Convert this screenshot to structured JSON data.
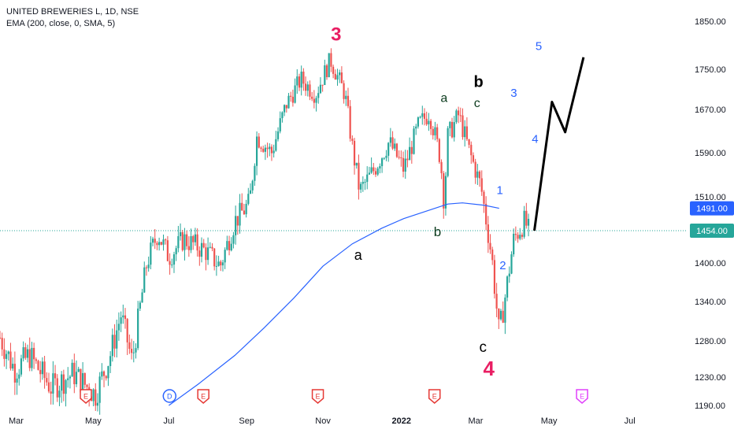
{
  "header": {
    "symbol": "UNITED BREWERIES L, 1D, NSE",
    "indicator": "EMA (200, close, 0, SMA, 5)"
  },
  "chart_data": {
    "type": "candlestick",
    "y_ticks": [
      1190,
      1230,
      1280,
      1340,
      1400,
      1454,
      1510,
      1590,
      1670,
      1750,
      1850
    ],
    "ylim": [
      1190,
      1850
    ],
    "x_labels": [
      "Mar",
      "May",
      "Jul",
      "Sep",
      "Nov",
      "2022",
      "Mar",
      "May",
      "Jul"
    ],
    "price_tags": [
      {
        "label": "1491.00",
        "value": 1491,
        "color": "#2962ff"
      },
      {
        "label": "1454.00",
        "value": 1454,
        "color": "#26a69a"
      }
    ],
    "ema_series": [
      {
        "t": 0.23,
        "v": 1190
      },
      {
        "t": 0.27,
        "v": 1220
      },
      {
        "t": 0.32,
        "v": 1260
      },
      {
        "t": 0.36,
        "v": 1300
      },
      {
        "t": 0.4,
        "v": 1345
      },
      {
        "t": 0.44,
        "v": 1395
      },
      {
        "t": 0.48,
        "v": 1432
      },
      {
        "t": 0.52,
        "v": 1458
      },
      {
        "t": 0.55,
        "v": 1474
      },
      {
        "t": 0.58,
        "v": 1486
      },
      {
        "t": 0.61,
        "v": 1498
      },
      {
        "t": 0.63,
        "v": 1500
      },
      {
        "t": 0.66,
        "v": 1496
      },
      {
        "t": 0.68,
        "v": 1491
      }
    ],
    "price_path": [
      {
        "t": 0.0,
        "v": 1285
      },
      {
        "t": 0.02,
        "v": 1240
      },
      {
        "t": 0.04,
        "v": 1260
      },
      {
        "t": 0.07,
        "v": 1215
      },
      {
        "t": 0.1,
        "v": 1235
      },
      {
        "t": 0.13,
        "v": 1205
      },
      {
        "t": 0.15,
        "v": 1260
      },
      {
        "t": 0.165,
        "v": 1320
      },
      {
        "t": 0.18,
        "v": 1250
      },
      {
        "t": 0.2,
        "v": 1400
      },
      {
        "t": 0.215,
        "v": 1450
      },
      {
        "t": 0.23,
        "v": 1410
      },
      {
        "t": 0.25,
        "v": 1440
      },
      {
        "t": 0.28,
        "v": 1420
      },
      {
        "t": 0.3,
        "v": 1395
      },
      {
        "t": 0.32,
        "v": 1470
      },
      {
        "t": 0.34,
        "v": 1500
      },
      {
        "t": 0.35,
        "v": 1620
      },
      {
        "t": 0.37,
        "v": 1590
      },
      {
        "t": 0.39,
        "v": 1680
      },
      {
        "t": 0.41,
        "v": 1730
      },
      {
        "t": 0.43,
        "v": 1700
      },
      {
        "t": 0.45,
        "v": 1770
      },
      {
        "t": 0.47,
        "v": 1700
      },
      {
        "t": 0.48,
        "v": 1600
      },
      {
        "t": 0.49,
        "v": 1520
      },
      {
        "t": 0.51,
        "v": 1560
      },
      {
        "t": 0.53,
        "v": 1610
      },
      {
        "t": 0.55,
        "v": 1560
      },
      {
        "t": 0.57,
        "v": 1640
      },
      {
        "t": 0.585,
        "v": 1665
      },
      {
        "t": 0.6,
        "v": 1580
      },
      {
        "t": 0.605,
        "v": 1500
      },
      {
        "t": 0.61,
        "v": 1620
      },
      {
        "t": 0.625,
        "v": 1660
      },
      {
        "t": 0.64,
        "v": 1590
      },
      {
        "t": 0.655,
        "v": 1530
      },
      {
        "t": 0.67,
        "v": 1410
      },
      {
        "t": 0.68,
        "v": 1290
      },
      {
        "t": 0.69,
        "v": 1360
      },
      {
        "t": 0.7,
        "v": 1440
      },
      {
        "t": 0.715,
        "v": 1470
      },
      {
        "t": 0.72,
        "v": 1454
      }
    ],
    "wave_line": [
      {
        "t": 0.728,
        "v": 1454
      },
      {
        "t": 0.752,
        "v": 1685
      },
      {
        "t": 0.77,
        "v": 1628
      },
      {
        "t": 0.795,
        "v": 1775
      }
    ],
    "annotations": [
      {
        "text": "3",
        "t": 0.458,
        "v": 1810,
        "color": "#e91e63",
        "size": 24
      },
      {
        "text": "a",
        "t": 0.605,
        "v": 1685,
        "color": "#0b3b1d",
        "size": 16
      },
      {
        "text": "b",
        "t": 0.652,
        "v": 1715,
        "color": "#000000",
        "size": 20
      },
      {
        "text": "c",
        "t": 0.65,
        "v": 1675,
        "color": "#0b3b1d",
        "size": 16
      },
      {
        "text": "a",
        "t": 0.488,
        "v": 1405,
        "color": "#000000",
        "size": 18
      },
      {
        "text": "b",
        "t": 0.596,
        "v": 1445,
        "color": "#0b3b1d",
        "size": 17
      },
      {
        "text": "1",
        "t": 0.681,
        "v": 1515,
        "color": "#2962ff",
        "size": 15
      },
      {
        "text": "2",
        "t": 0.685,
        "v": 1390,
        "color": "#2962ff",
        "size": 15
      },
      {
        "text": "c",
        "t": 0.658,
        "v": 1265,
        "color": "#000000",
        "size": 19
      },
      {
        "text": "4",
        "t": 0.666,
        "v": 1232,
        "color": "#e91e63",
        "size": 26
      },
      {
        "text": "3",
        "t": 0.7,
        "v": 1695,
        "color": "#2962ff",
        "size": 15
      },
      {
        "text": "4",
        "t": 0.729,
        "v": 1608,
        "color": "#2962ff",
        "size": 15
      },
      {
        "text": "5",
        "t": 0.734,
        "v": 1790,
        "color": "#2962ff",
        "size": 15
      }
    ],
    "event_markers": [
      {
        "label": "E",
        "t": 0.117,
        "kind": "earnings",
        "color": "#e53935"
      },
      {
        "label": "D",
        "t": 0.231,
        "kind": "dividend",
        "color": "#2962ff"
      },
      {
        "label": "E",
        "t": 0.277,
        "kind": "earnings",
        "color": "#e53935"
      },
      {
        "label": "E",
        "t": 0.433,
        "kind": "earnings",
        "color": "#e53935"
      },
      {
        "label": "E",
        "t": 0.592,
        "kind": "earnings",
        "color": "#e53935"
      },
      {
        "label": "E",
        "t": 0.793,
        "kind": "future-earnings",
        "color": "#e040fb"
      }
    ],
    "colors": {
      "up": "#26a69a",
      "down": "#ef5350",
      "ema": "#2962ff",
      "wave": "#000000",
      "grid": "#f0f3fa",
      "axis_text": "#131722"
    }
  }
}
